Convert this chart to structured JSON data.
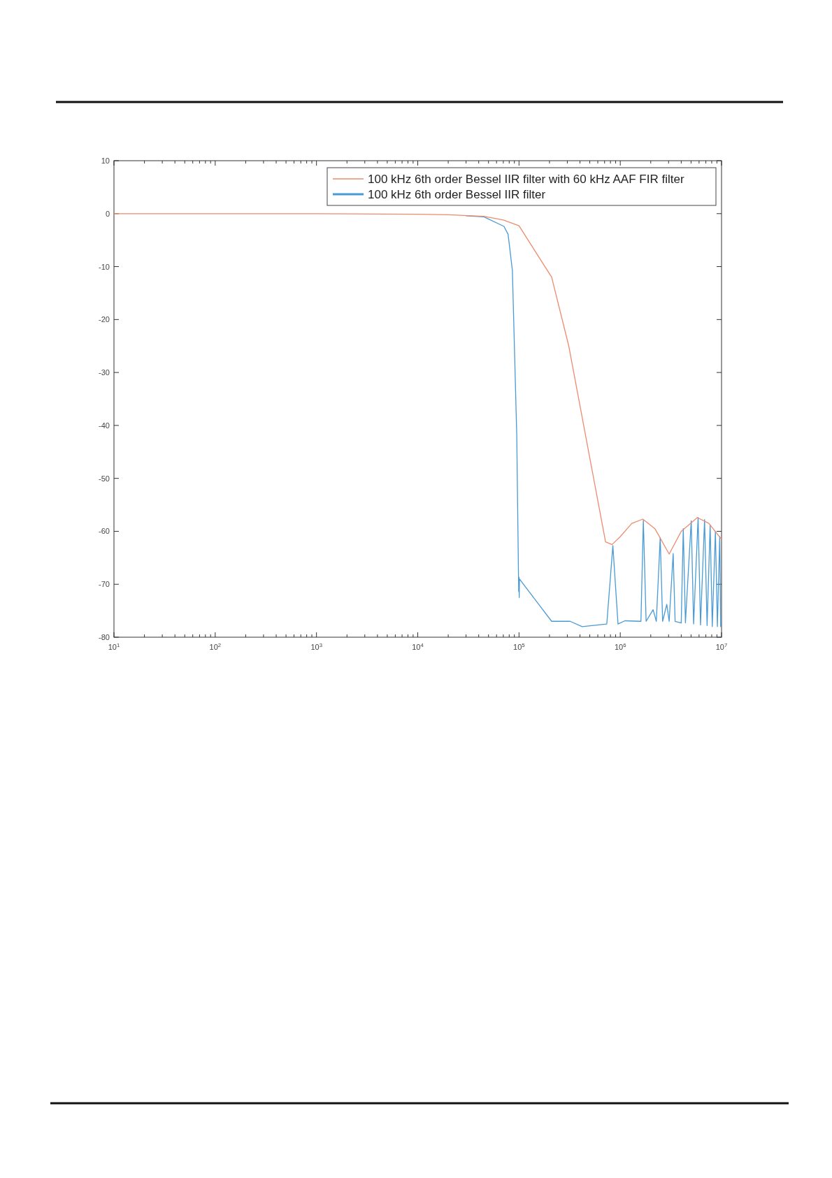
{
  "chart_data": {
    "type": "line",
    "log": "x",
    "xlim": [
      10,
      10000000
    ],
    "ylim": [
      -80,
      10
    ],
    "xticks": [
      {
        "value": 10,
        "label": "10$^{1}$"
      },
      {
        "value": 100,
        "label": "10$^{2}$"
      },
      {
        "value": 1000,
        "label": "10$^{3}$"
      },
      {
        "value": 10000,
        "label": "10$^{4}$"
      },
      {
        "value": 100000,
        "label": "10$^{5}$"
      },
      {
        "value": 1000000,
        "label": "10$^{6}$"
      },
      {
        "value": 10000000,
        "label": "10$^{7}$"
      }
    ],
    "yticks": [
      -80,
      -70,
      -60,
      -50,
      -40,
      -30,
      -20,
      -10,
      0,
      10
    ],
    "legend": "top right",
    "grid": false,
    "series": [
      {
        "name": "100 kHz 6th order Bessel IIR filter with 60 kHz AAF FIR filter",
        "color": "#ee8a6e",
        "x": [
          10,
          1000,
          10000,
          20000,
          45000,
          70000,
          100000,
          210000,
          310000,
          716000,
          830000,
          1000000,
          1300000,
          1670000,
          2200000,
          3040000,
          4000000,
          5770000,
          7500000,
          10000000
        ],
        "values": [
          0,
          0,
          -0.1,
          -0.2,
          -0.5,
          -1.2,
          -2.3,
          -12,
          -25,
          -62,
          -62.5,
          -61,
          -58.5,
          -57.7,
          -59.5,
          -64.3,
          -60,
          -57.4,
          -58.5,
          -61.5
        ]
      },
      {
        "name": "100 kHz 6th order Bessel IIR filter",
        "color": "#4a9ad6",
        "x": [
          30000,
          45000,
          71000,
          78000,
          86000,
          95000,
          99300,
          100000,
          100500,
          101000,
          210000,
          320000,
          420000,
          736000,
          845000,
          950000,
          1110000,
          1600000,
          1690000,
          1800000,
          2110000,
          2270000,
          2480000,
          2620000,
          2880000,
          3040000,
          3330000,
          3480000,
          4000000,
          4190000,
          4400000,
          5020000,
          5300000,
          5870000,
          6200000,
          6800000,
          7200000,
          7720000,
          8100000,
          8700000,
          9100000,
          9600000,
          9800000,
          10000000
        ],
        "values": [
          -0.4,
          -0.6,
          -2.4,
          -3.9,
          -10.7,
          -41.8,
          -71.4,
          -68.7,
          -72.5,
          -69,
          -77,
          -77,
          -78,
          -77.5,
          -62.7,
          -77.5,
          -76.9,
          -77,
          -57.9,
          -77,
          -74.8,
          -77,
          -61.2,
          -77,
          -73.8,
          -77,
          -64.2,
          -77,
          -77.3,
          -59.5,
          -77.3,
          -58,
          -77.5,
          -57.4,
          -77.7,
          -57.8,
          -77.8,
          -58.8,
          -78,
          -60,
          -78,
          -61,
          -78,
          -77.5
        ]
      }
    ]
  }
}
